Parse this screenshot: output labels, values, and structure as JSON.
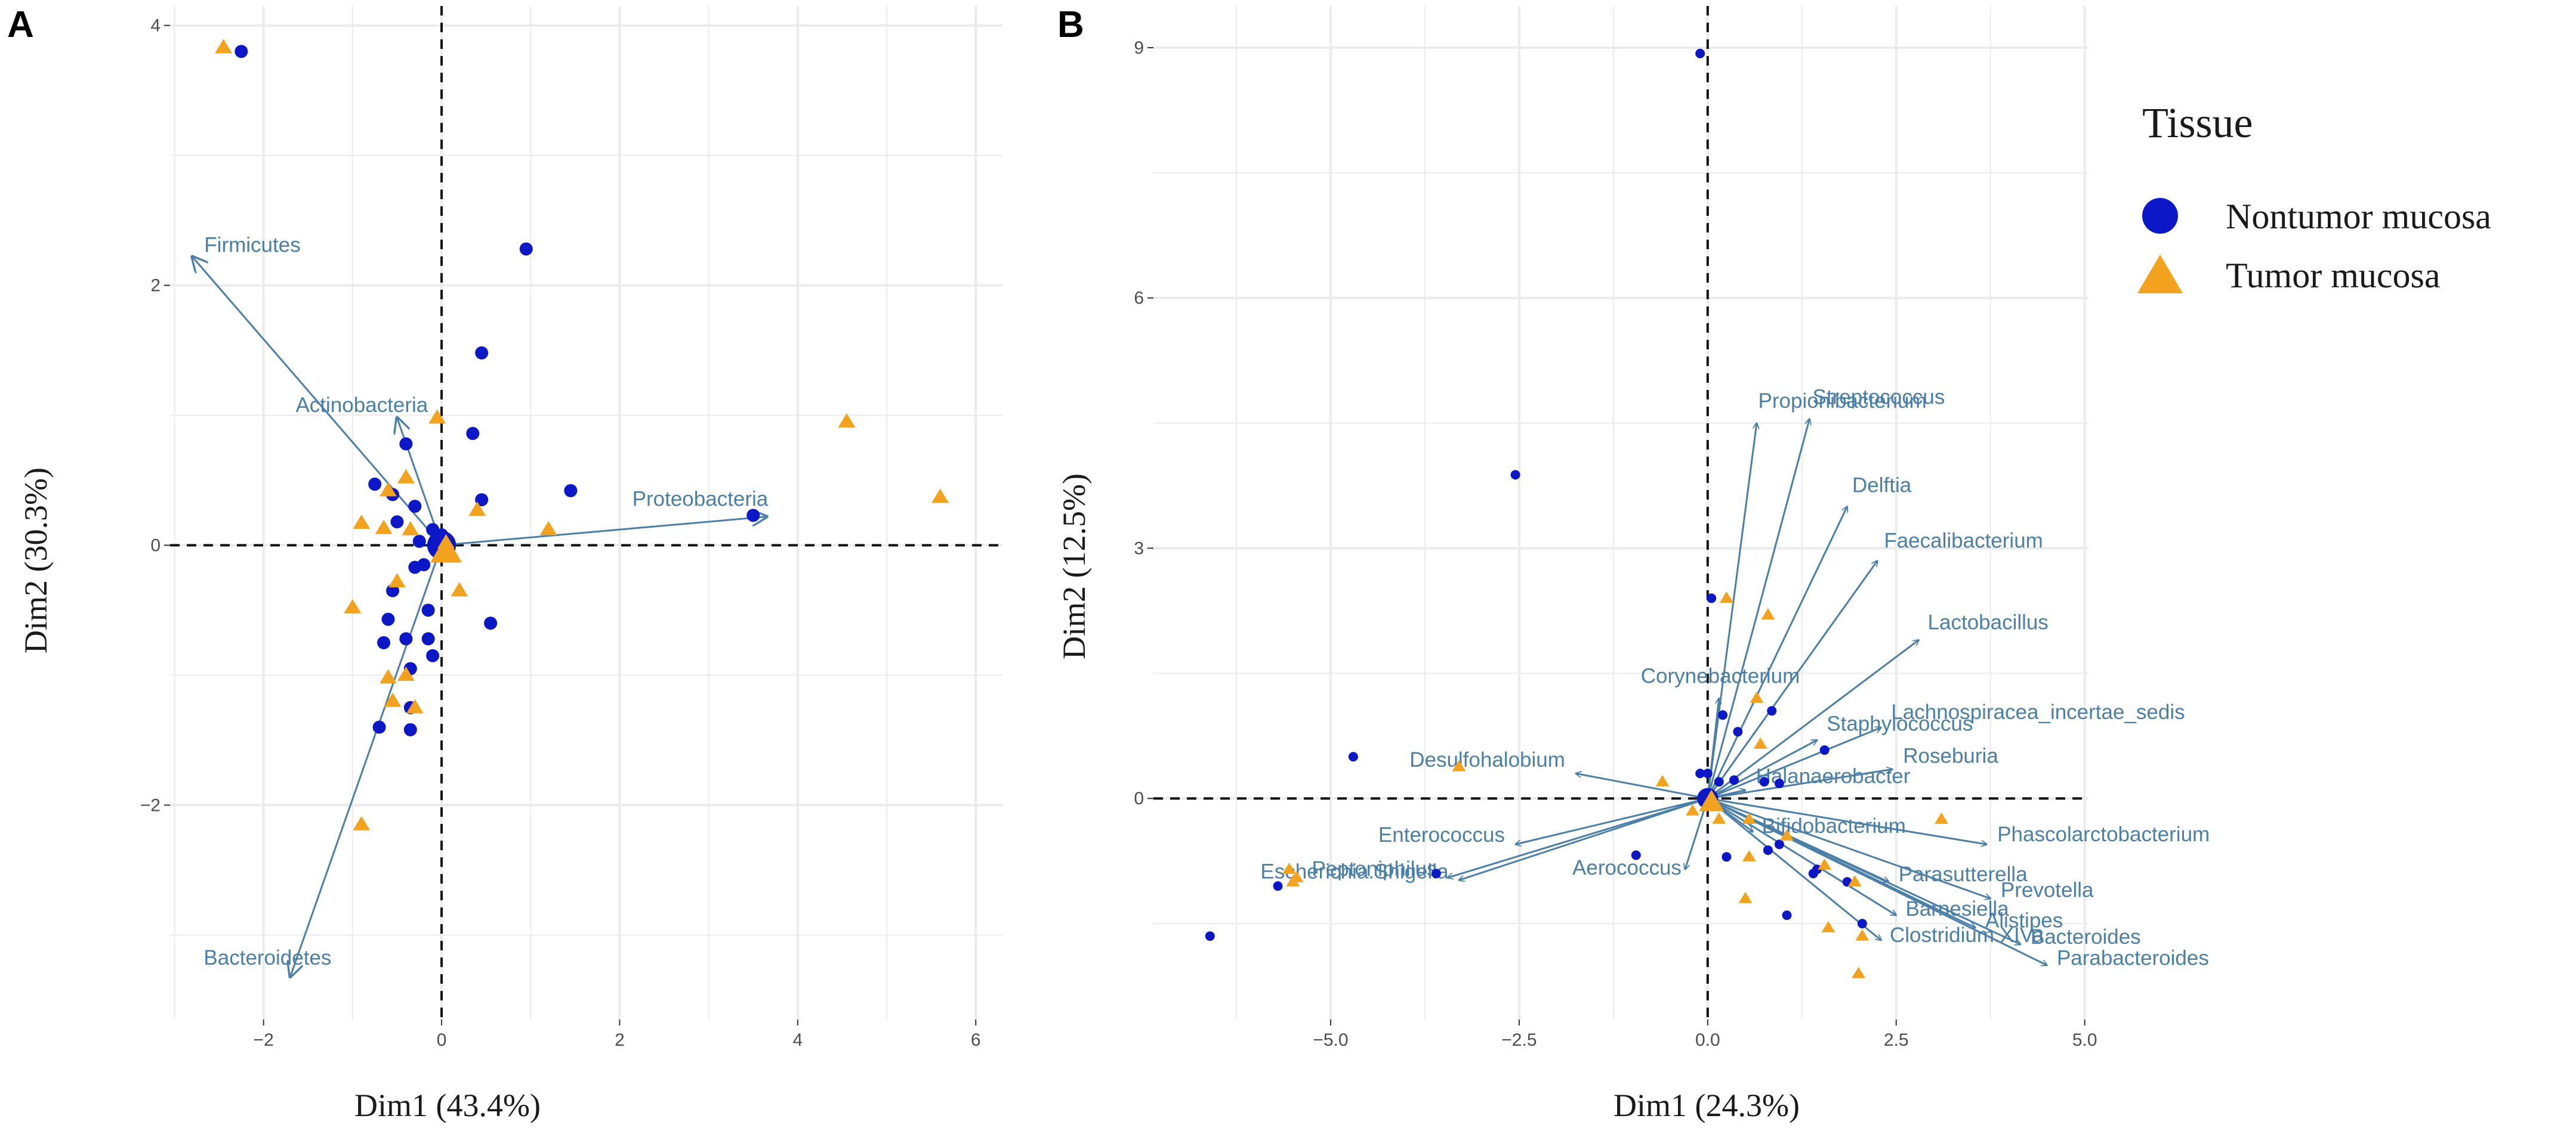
{
  "colors": {
    "nontumor": "#0c18c8",
    "tumor": "#f2a21c",
    "vector": "#4a7fa8",
    "grid": "#ebebeb"
  },
  "legend": {
    "title": "Tissue",
    "items": [
      {
        "key": "nontumor",
        "label": "Nontumor mucosa",
        "shape": "circle"
      },
      {
        "key": "tumor",
        "label": "Tumor mucosa",
        "shape": "triangle"
      }
    ]
  },
  "chart_data": [
    {
      "panel": "A",
      "type": "scatter",
      "title": "",
      "xlabel": "Dim1 (43.4%)",
      "ylabel": "Dim2 (30.3%)",
      "xlim": [
        -3.05,
        6.3
      ],
      "ylim": [
        -3.65,
        4.15
      ],
      "xticks": [
        -2,
        0,
        2,
        4,
        6
      ],
      "yticks": [
        -2,
        0,
        2,
        4
      ],
      "xtick_labels": [
        "−2",
        "0",
        "2",
        "4",
        "6"
      ],
      "ytick_labels": [
        "−2",
        "0",
        "2",
        "4"
      ],
      "series": [
        {
          "name": "Nontumor mucosa",
          "key": "nontumor",
          "points": [
            [
              -2.25,
              3.8
            ],
            [
              0.95,
              2.28
            ],
            [
              0.45,
              1.48
            ],
            [
              -0.4,
              0.78
            ],
            [
              0.35,
              0.86
            ],
            [
              1.45,
              0.42
            ],
            [
              0.45,
              0.35
            ],
            [
              -0.75,
              0.47
            ],
            [
              -0.55,
              0.39
            ],
            [
              -0.3,
              0.3
            ],
            [
              -0.5,
              0.18
            ],
            [
              -0.1,
              0.12
            ],
            [
              0.0,
              0.08
            ],
            [
              -0.25,
              0.03
            ],
            [
              -0.2,
              -0.15
            ],
            [
              -0.3,
              -0.17
            ],
            [
              -0.55,
              -0.35
            ],
            [
              -0.15,
              -0.5
            ],
            [
              -0.6,
              -0.57
            ],
            [
              0.55,
              -0.6
            ],
            [
              -0.4,
              -0.72
            ],
            [
              -0.15,
              -0.72
            ],
            [
              -0.65,
              -0.75
            ],
            [
              -0.1,
              -0.85
            ],
            [
              -0.35,
              -0.95
            ],
            [
              -0.35,
              -1.25
            ],
            [
              -0.7,
              -1.4
            ],
            [
              -0.35,
              -1.42
            ],
            [
              3.5,
              0.23
            ]
          ]
        },
        {
          "name": "Tumor mucosa",
          "key": "tumor",
          "points": [
            [
              -2.45,
              3.83
            ],
            [
              -0.05,
              0.98
            ],
            [
              4.55,
              0.95
            ],
            [
              5.6,
              0.37
            ],
            [
              0.4,
              0.27
            ],
            [
              -0.6,
              0.42
            ],
            [
              -0.4,
              0.52
            ],
            [
              -0.9,
              0.17
            ],
            [
              -0.65,
              0.13
            ],
            [
              -0.35,
              0.12
            ],
            [
              1.2,
              0.12
            ],
            [
              0.05,
              0.02
            ],
            [
              0.1,
              -0.05
            ],
            [
              -0.5,
              -0.28
            ],
            [
              0.2,
              -0.35
            ],
            [
              -1.0,
              -0.48
            ],
            [
              -0.6,
              -1.02
            ],
            [
              -0.4,
              -1.0
            ],
            [
              -0.55,
              -1.2
            ],
            [
              -0.3,
              -1.25
            ],
            [
              -0.9,
              -2.15
            ]
          ]
        }
      ],
      "vectors": [
        {
          "label": "Firmicutes",
          "x": -2.8,
          "y": 2.22
        },
        {
          "label": "Actinobacteria",
          "x": -0.5,
          "y": 0.98
        },
        {
          "label": "Proteobacteria",
          "x": 3.65,
          "y": 0.22
        },
        {
          "label": "Bacteroidetes",
          "x": -1.7,
          "y": -3.32
        }
      ]
    },
    {
      "panel": "B",
      "type": "scatter",
      "title": "",
      "xlabel": "Dim1 (24.3%)",
      "ylabel": "Dim2 (12.5%)",
      "xlim": [
        -7.35,
        5.05
      ],
      "ylim": [
        -2.65,
        9.5
      ],
      "xticks": [
        -5,
        -2.5,
        0,
        2.5,
        5
      ],
      "yticks": [
        0,
        3,
        6,
        9
      ],
      "xtick_labels": [
        "−5.0",
        "−2.5",
        "0.0",
        "2.5",
        "5.0"
      ],
      "ytick_labels": [
        "0",
        "3",
        "6",
        "9"
      ],
      "series": [
        {
          "name": "Nontumor mucosa",
          "key": "nontumor",
          "points": [
            [
              -0.1,
              8.93
            ],
            [
              -2.55,
              3.88
            ],
            [
              -4.7,
              0.5
            ],
            [
              0.05,
              2.4
            ],
            [
              0.2,
              1.0
            ],
            [
              0.4,
              0.8
            ],
            [
              0.85,
              1.05
            ],
            [
              1.55,
              0.58
            ],
            [
              0.15,
              0.2
            ],
            [
              0.35,
              0.22
            ],
            [
              0.75,
              0.2
            ],
            [
              0.95,
              0.18
            ],
            [
              -0.1,
              0.3
            ],
            [
              0.0,
              0.3
            ],
            [
              0.25,
              -0.7
            ],
            [
              1.45,
              -0.85
            ],
            [
              0.95,
              -0.55
            ],
            [
              1.85,
              -1.0
            ],
            [
              1.05,
              -1.4
            ],
            [
              2.05,
              -1.5
            ],
            [
              -0.95,
              -0.68
            ],
            [
              -3.6,
              -0.9
            ],
            [
              -5.7,
              -1.05
            ],
            [
              -6.6,
              -1.65
            ],
            [
              1.4,
              -0.9
            ],
            [
              0.8,
              -0.62
            ]
          ]
        },
        {
          "name": "Tumor mucosa",
          "key": "tumor",
          "points": [
            [
              0.25,
              2.4
            ],
            [
              0.8,
              2.2
            ],
            [
              0.65,
              1.2
            ],
            [
              -3.3,
              0.38
            ],
            [
              0.7,
              0.65
            ],
            [
              -0.6,
              0.2
            ],
            [
              -0.2,
              -0.15
            ],
            [
              0.15,
              -0.25
            ],
            [
              0.55,
              -0.25
            ],
            [
              1.05,
              -0.45
            ],
            [
              3.1,
              -0.25
            ],
            [
              0.55,
              -0.7
            ],
            [
              1.55,
              -0.8
            ],
            [
              1.95,
              -1.0
            ],
            [
              0.5,
              -1.2
            ],
            [
              1.6,
              -1.55
            ],
            [
              2.05,
              -1.65
            ],
            [
              2.0,
              -2.1
            ],
            [
              -5.55,
              -0.85
            ],
            [
              -5.45,
              -0.95
            ],
            [
              -5.5,
              -1.0
            ]
          ]
        }
      ],
      "vectors": [
        {
          "label": "Streptococcus",
          "x": 1.35,
          "y": 4.55
        },
        {
          "label": "Propionibacterium",
          "x": 0.65,
          "y": 4.5
        },
        {
          "label": "Delftia",
          "x": 1.85,
          "y": 3.5
        },
        {
          "label": "Faecalibacterium",
          "x": 2.25,
          "y": 2.85
        },
        {
          "label": "Lactobacillus",
          "x": 2.8,
          "y": 1.9
        },
        {
          "label": "Corynebacterium",
          "x": 0.15,
          "y": 1.2
        },
        {
          "label": "Lachnospiracea_incertae_sedis",
          "x": 2.3,
          "y": 0.85
        },
        {
          "label": "Staphylococcus",
          "x": 1.45,
          "y": 0.7
        },
        {
          "label": "Desulfohalobium",
          "x": -1.75,
          "y": 0.3
        },
        {
          "label": "Roseburia",
          "x": 2.45,
          "y": 0.35
        },
        {
          "label": "Halanaerobacter",
          "x": 0.5,
          "y": 0.1
        },
        {
          "label": "Enterococcus",
          "x": -2.55,
          "y": -0.55
        },
        {
          "label": "Bifidobacterium",
          "x": 0.6,
          "y": -0.4
        },
        {
          "label": "Phascolarctobacterium",
          "x": 3.7,
          "y": -0.55
        },
        {
          "label": "Aerococcus",
          "x": -0.3,
          "y": -0.85
        },
        {
          "label": "Parasutterella",
          "x": 2.4,
          "y": -1.0
        },
        {
          "label": "Peptoniphilus",
          "x": -3.45,
          "y": -0.95
        },
        {
          "label": "Escherichia.Shigella",
          "x": -3.3,
          "y": -0.98
        },
        {
          "label": "Prevotella",
          "x": 3.75,
          "y": -1.2
        },
        {
          "label": "Barnesiella",
          "x": 2.5,
          "y": -1.4
        },
        {
          "label": "Alistipes",
          "x": 3.55,
          "y": -1.55
        },
        {
          "label": "Clostridium.XIVa",
          "x": 2.3,
          "y": -1.7
        },
        {
          "label": "Bacteroides",
          "x": 4.15,
          "y": -1.75
        },
        {
          "label": "Parabacteroides",
          "x": 4.5,
          "y": -2.0
        }
      ]
    }
  ]
}
